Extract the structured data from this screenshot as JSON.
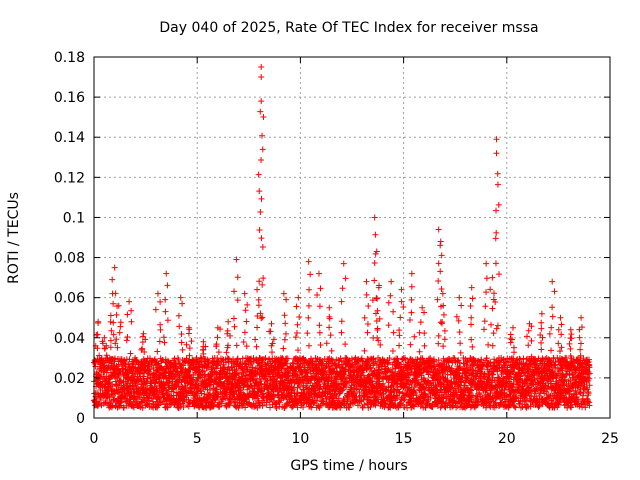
{
  "chart_data": {
    "type": "scatter",
    "title": "Day 040 of 2025, Rate Of TEC Index for receiver mssa",
    "xlabel": "GPS time / hours",
    "ylabel": "ROTI / TECUs",
    "xlim": [
      0,
      25
    ],
    "ylim": [
      0,
      0.18
    ],
    "x_ticks": [
      0,
      5,
      10,
      15,
      20,
      25
    ],
    "y_ticks": [
      0,
      0.02,
      0.04,
      0.06,
      0.08,
      0.1,
      0.12,
      0.14,
      0.16,
      0.18
    ],
    "x_tick_labels": [
      "0",
      "5",
      "10",
      "15",
      "20",
      "25"
    ],
    "y_tick_labels": [
      "0",
      "0.02",
      "0.04",
      "0.06",
      "0.08",
      "0.1",
      "0.12",
      "0.14",
      "0.16",
      "0.18"
    ],
    "grid": true,
    "marker": "+",
    "color": "#ff0000",
    "series": [
      {
        "name": "ROTI",
        "sampling_interval_hours": 0.02,
        "x_range": [
          0.0,
          24.0
        ],
        "baseline_band": [
          0.005,
          0.03
        ],
        "notes": "Dense cloud of points; representative envelope of local maxima listed in peaks",
        "peaks": [
          {
            "x": 0.2,
            "y": 0.048
          },
          {
            "x": 0.5,
            "y": 0.04
          },
          {
            "x": 0.9,
            "y": 0.062
          },
          {
            "x": 1.0,
            "y": 0.075
          },
          {
            "x": 1.2,
            "y": 0.056
          },
          {
            "x": 1.7,
            "y": 0.058
          },
          {
            "x": 2.4,
            "y": 0.042
          },
          {
            "x": 3.1,
            "y": 0.062
          },
          {
            "x": 3.5,
            "y": 0.072
          },
          {
            "x": 4.2,
            "y": 0.06
          },
          {
            "x": 4.6,
            "y": 0.045
          },
          {
            "x": 5.3,
            "y": 0.038
          },
          {
            "x": 6.0,
            "y": 0.045
          },
          {
            "x": 6.5,
            "y": 0.048
          },
          {
            "x": 6.9,
            "y": 0.079
          },
          {
            "x": 7.3,
            "y": 0.062
          },
          {
            "x": 7.9,
            "y": 0.064
          },
          {
            "x": 8.1,
            "y": 0.175
          },
          {
            "x": 8.1,
            "y": 0.17
          },
          {
            "x": 8.1,
            "y": 0.158
          },
          {
            "x": 8.6,
            "y": 0.047
          },
          {
            "x": 9.2,
            "y": 0.062
          },
          {
            "x": 9.9,
            "y": 0.06
          },
          {
            "x": 10.4,
            "y": 0.078
          },
          {
            "x": 10.9,
            "y": 0.072
          },
          {
            "x": 11.4,
            "y": 0.055
          },
          {
            "x": 12.1,
            "y": 0.077
          },
          {
            "x": 13.2,
            "y": 0.068
          },
          {
            "x": 13.6,
            "y": 0.1
          },
          {
            "x": 13.7,
            "y": 0.083
          },
          {
            "x": 13.8,
            "y": 0.065
          },
          {
            "x": 14.4,
            "y": 0.068
          },
          {
            "x": 14.9,
            "y": 0.064
          },
          {
            "x": 15.4,
            "y": 0.072
          },
          {
            "x": 15.9,
            "y": 0.055
          },
          {
            "x": 16.7,
            "y": 0.094
          },
          {
            "x": 16.8,
            "y": 0.088
          },
          {
            "x": 16.9,
            "y": 0.062
          },
          {
            "x": 17.7,
            "y": 0.06
          },
          {
            "x": 18.3,
            "y": 0.065
          },
          {
            "x": 19.0,
            "y": 0.077
          },
          {
            "x": 19.3,
            "y": 0.07
          },
          {
            "x": 19.5,
            "y": 0.139
          },
          {
            "x": 19.5,
            "y": 0.132
          },
          {
            "x": 20.3,
            "y": 0.045
          },
          {
            "x": 21.1,
            "y": 0.047
          },
          {
            "x": 21.7,
            "y": 0.052
          },
          {
            "x": 22.2,
            "y": 0.068
          },
          {
            "x": 22.6,
            "y": 0.05
          },
          {
            "x": 23.1,
            "y": 0.044
          },
          {
            "x": 23.6,
            "y": 0.05
          }
        ]
      }
    ]
  }
}
